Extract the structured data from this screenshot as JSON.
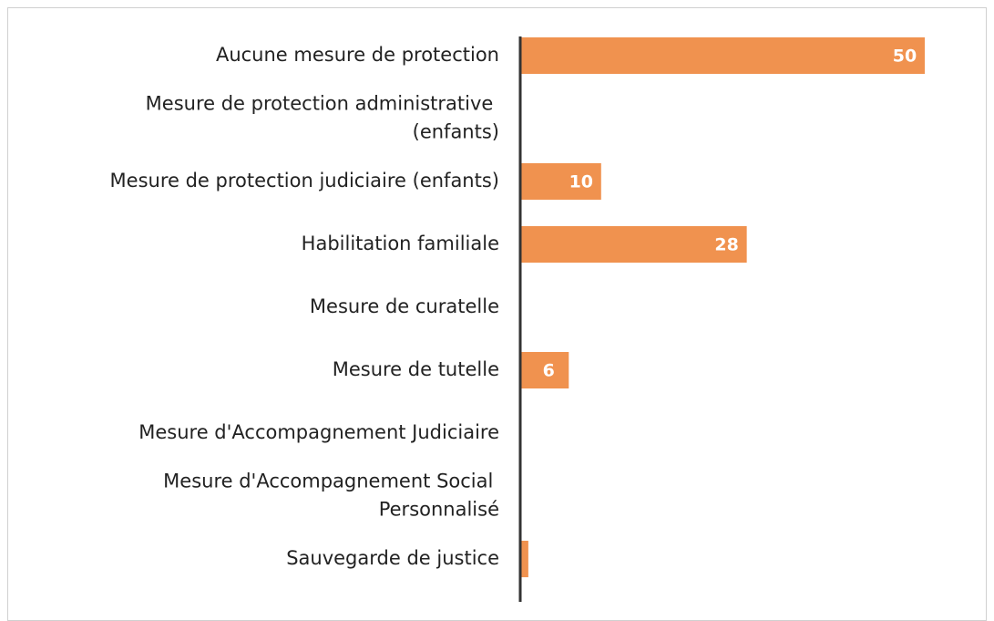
{
  "chart_data": {
    "type": "barh",
    "categories": [
      "Aucune mesure de protection",
      "Mesure de protection administrative (enfants)",
      "Mesure de protection judiciaire (enfants)",
      "Habilitation familiale",
      "Mesure de curatelle",
      "Mesure de tutelle",
      "Mesure d'Accompagnement Judiciaire",
      "Mesure d'Accompagnement Social Personnalisé",
      "Sauvegarde de justice"
    ],
    "values": [
      50,
      0,
      10,
      28,
      0,
      6,
      0,
      0,
      1
    ],
    "value_labels": [
      "50",
      null,
      "10",
      "28",
      null,
      "6",
      null,
      null,
      null
    ],
    "color": "#f0924f",
    "xlim": [
      0,
      50
    ]
  }
}
